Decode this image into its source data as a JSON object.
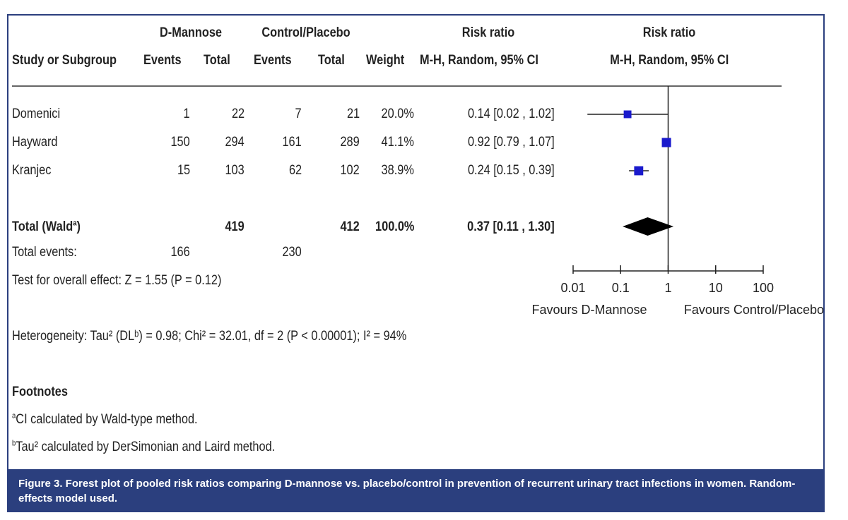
{
  "header": {
    "group1": "D-Mannose",
    "group2": "Control/Placebo",
    "rr_col_title": "Risk ratio",
    "plot_title": "Risk ratio",
    "study": "Study or Subgroup",
    "events1": "Events",
    "total1": "Total",
    "events2": "Events",
    "total2": "Total",
    "weight": "Weight",
    "method": "M-H, Random, 95% CI",
    "plot_method": "M-H, Random, 95% CI"
  },
  "rows": [
    {
      "study": "Domenici",
      "events1": "1",
      "total1": "22",
      "events2": "7",
      "total2": "21",
      "weight": "20.0%",
      "ci": "0.14 [0.02 , 1.02]"
    },
    {
      "study": "Hayward",
      "events1": "150",
      "total1": "294",
      "events2": "161",
      "total2": "289",
      "weight": "41.1%",
      "ci": "0.92 [0.79 , 1.07]"
    },
    {
      "study": "Kranjec",
      "events1": "15",
      "total1": "103",
      "events2": "62",
      "total2": "102",
      "weight": "38.9%",
      "ci": "0.24 [0.15 , 0.39]"
    }
  ],
  "total": {
    "label": "Total (Wald",
    "label_sup": "a",
    "label_end": ")",
    "total1": "419",
    "total2": "412",
    "weight": "100.0%",
    "ci": "0.37 [0.11 , 1.30]"
  },
  "total_events": {
    "label": "Total events:",
    "events1": "166",
    "events2": "230"
  },
  "overall_effect": "Test for overall effect: Z = 1.55 (P = 0.12)",
  "heterogeneity": "Heterogeneity: Tau² (DLᵇ) = 0.98; Chi² = 32.01, df = 2 (P < 0.00001); I² = 94%",
  "footnotes": {
    "title": "Footnotes",
    "a_mark": "a",
    "a": "CI calculated by Wald-type method.",
    "b_mark": "b",
    "b": "Tau² calculated by DerSimonian and Laird method."
  },
  "caption": "Figure 3.  Forest plot of pooled risk ratios comparing D-mannose vs. placebo/control in prevention of recurrent urinary tract infections in women. Random-effects model used.",
  "chart_data": {
    "type": "forest",
    "title": "Risk ratio",
    "method": "M-H, Random, 95% CI",
    "scale": "log",
    "xlim": [
      0.01,
      100
    ],
    "null_value": 1,
    "ticks": [
      0.01,
      0.1,
      1,
      10,
      100
    ],
    "tick_labels": [
      "0.01",
      "0.1",
      "1",
      "10",
      "100"
    ],
    "left_label": "Favours D-Mannose",
    "right_label": "Favours Control/Placebo",
    "studies": [
      {
        "name": "Domenici",
        "rr": 0.14,
        "lo": 0.02,
        "hi": 1.02,
        "weight": 20.0
      },
      {
        "name": "Hayward",
        "rr": 0.92,
        "lo": 0.79,
        "hi": 1.07,
        "weight": 41.1
      },
      {
        "name": "Kranjec",
        "rr": 0.24,
        "lo": 0.15,
        "hi": 0.39,
        "weight": 38.9
      }
    ],
    "pooled": {
      "name": "Total",
      "rr": 0.37,
      "lo": 0.11,
      "hi": 1.3
    },
    "marker_color": "#1a1acc",
    "diamond_color": "#000000"
  }
}
